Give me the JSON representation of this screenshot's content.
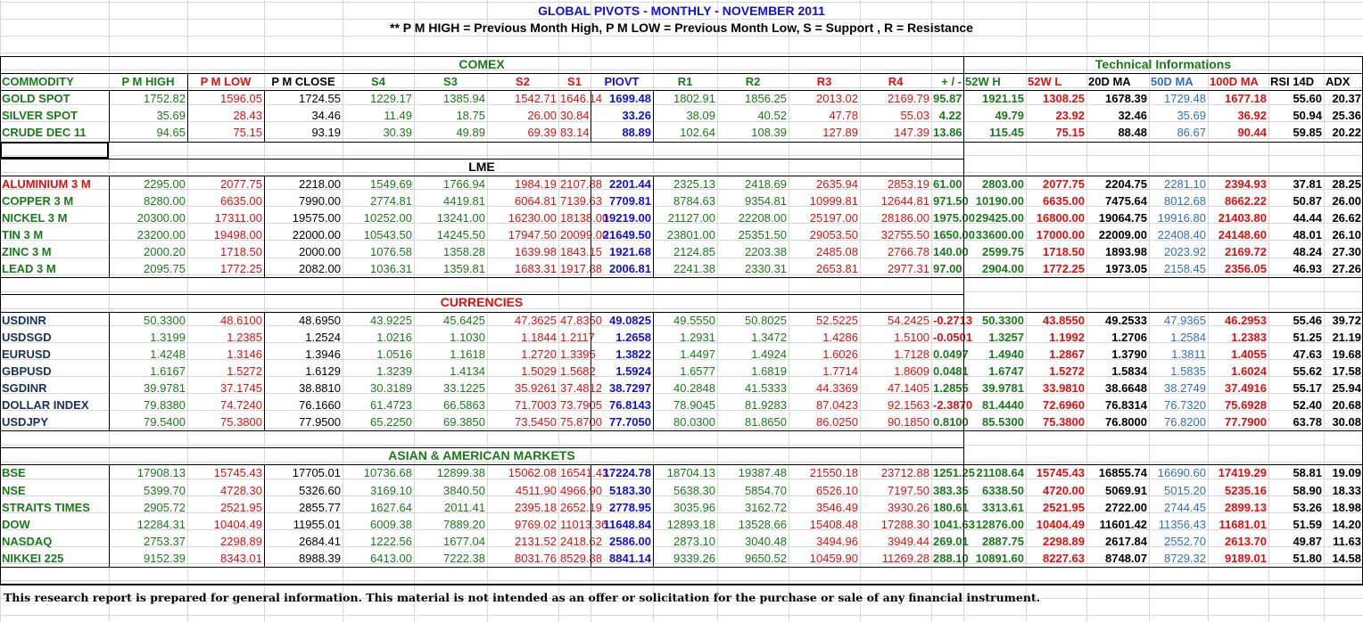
{
  "header": {
    "title": "GLOBAL PIVOTS - MONTHLY - NOVEMBER 2011",
    "subtitle": "** P M HIGH = Previous Month High, P M LOW = Previous Month Low, S  = Support  , R = Resistance"
  },
  "colors": {
    "green": "#1a7a1a",
    "red": "#e01010",
    "blue": "#1010dd",
    "lightblue": "#2f6fbf",
    "black": "#000000",
    "gridline": "#d8d8d8"
  },
  "groups": {
    "comex": "COMEX",
    "technical": "Technical Informations"
  },
  "columns": [
    "COMMODITY",
    "P M HIGH",
    "P M LOW",
    "P M CLOSE",
    "S4",
    "S3",
    "S2",
    "S1",
    "PIOVT",
    "R1",
    "R2",
    "R3",
    "R4",
    "+ / -",
    "52W H",
    "52W L",
    "20D MA",
    "50D MA",
    "100D MA",
    "RSI 14D",
    "ADX"
  ],
  "sections": [
    {
      "title": "",
      "rows": [
        [
          "GOLD SPOT",
          "1752.82",
          "1596.05",
          "1724.55",
          "1229.17",
          "1385.94",
          "1542.71",
          "1646.14",
          "1699.48",
          "1802.91",
          "1856.25",
          "2013.02",
          "2169.79",
          "95.87",
          "1921.15",
          "1308.25",
          "1678.39",
          "1729.48",
          "1677.18",
          "55.60",
          "20.37"
        ],
        [
          "SILVER SPOT",
          "35.69",
          "28.43",
          "34.46",
          "11.49",
          "18.75",
          "26.00",
          "30.84",
          "33.26",
          "38.09",
          "40.52",
          "47.78",
          "55.03",
          "4.22",
          "49.79",
          "23.92",
          "32.46",
          "35.69",
          "36.92",
          "50.94",
          "25.36"
        ],
        [
          "CRUDE DEC 11",
          "94.65",
          "75.15",
          "93.19",
          "30.39",
          "49.89",
          "69.39",
          "83.14",
          "88.89",
          "102.64",
          "108.39",
          "127.89",
          "147.39",
          "13.86",
          "115.45",
          "75.15",
          "88.48",
          "86.67",
          "90.44",
          "59.85",
          "20.22"
        ]
      ]
    },
    {
      "title": "LME",
      "rows": [
        [
          "ALUMINIUM 3 M",
          "2295.00",
          "2077.75",
          "2218.00",
          "1549.69",
          "1766.94",
          "1984.19",
          "2107.88",
          "2201.44",
          "2325.13",
          "2418.69",
          "2635.94",
          "2853.19",
          "61.00",
          "2803.00",
          "2077.75",
          "2204.75",
          "2281.10",
          "2394.93",
          "37.81",
          "28.25"
        ],
        [
          "COPPER 3 M",
          "8280.00",
          "6635.00",
          "7990.00",
          "2774.81",
          "4419.81",
          "6064.81",
          "7139.63",
          "7709.81",
          "8784.63",
          "9354.81",
          "10999.81",
          "12644.81",
          "971.50",
          "10190.00",
          "6635.00",
          "7475.64",
          "8012.68",
          "8662.22",
          "50.87",
          "26.00"
        ],
        [
          "NICKEL 3 M",
          "20300.00",
          "17311.00",
          "19575.00",
          "10252.00",
          "13241.00",
          "16230.00",
          "18138.00",
          "19219.00",
          "21127.00",
          "22208.00",
          "25197.00",
          "28186.00",
          "1975.00",
          "29425.00",
          "16800.00",
          "19064.75",
          "19916.80",
          "21403.80",
          "44.44",
          "26.62"
        ],
        [
          "TIN 3 M",
          "23200.00",
          "19498.00",
          "22000.00",
          "10543.50",
          "14245.50",
          "17947.50",
          "20099.00",
          "21649.50",
          "23801.00",
          "25351.50",
          "29053.50",
          "32755.50",
          "1650.00",
          "33600.00",
          "17000.00",
          "22009.00",
          "22408.40",
          "24148.60",
          "48.01",
          "26.10"
        ],
        [
          "ZINC 3 M",
          "2000.20",
          "1718.50",
          "2000.00",
          "1076.58",
          "1358.28",
          "1639.98",
          "1843.15",
          "1921.68",
          "2124.85",
          "2203.38",
          "2485.08",
          "2766.78",
          "140.00",
          "2599.75",
          "1718.50",
          "1893.98",
          "2023.92",
          "2169.72",
          "48.24",
          "27.30"
        ],
        [
          "LEAD 3 M",
          "2095.75",
          "1772.25",
          "2082.00",
          "1036.31",
          "1359.81",
          "1683.31",
          "1917.88",
          "2006.81",
          "2241.38",
          "2330.31",
          "2653.81",
          "2977.31",
          "97.00",
          "2904.00",
          "1772.25",
          "1973.05",
          "2158.45",
          "2356.05",
          "46.93",
          "27.26"
        ]
      ]
    },
    {
      "title": "CURRENCIES",
      "rows": [
        [
          "USDINR",
          "50.3300",
          "48.6100",
          "48.6950",
          "43.9225",
          "45.6425",
          "47.3625",
          "47.8350",
          "49.0825",
          "49.5550",
          "50.8025",
          "52.5225",
          "54.2425",
          "-0.2713",
          "50.3300",
          "43.8550",
          "49.2533",
          "47.9365",
          "46.2953",
          "55.46",
          "39.72"
        ],
        [
          "USDSGD",
          "1.3199",
          "1.2385",
          "1.2524",
          "1.0216",
          "1.1030",
          "1.1844",
          "1.2117",
          "1.2658",
          "1.2931",
          "1.3472",
          "1.4286",
          "1.5100",
          "-0.0501",
          "1.3257",
          "1.1992",
          "1.2706",
          "1.2584",
          "1.2383",
          "51.25",
          "21.19"
        ],
        [
          "EURUSD",
          "1.4248",
          "1.3146",
          "1.3946",
          "1.0516",
          "1.1618",
          "1.2720",
          "1.3395",
          "1.3822",
          "1.4497",
          "1.4924",
          "1.6026",
          "1.7128",
          "0.0497",
          "1.4940",
          "1.2867",
          "1.3790",
          "1.3811",
          "1.4055",
          "47.63",
          "19.68"
        ],
        [
          "GBPUSD",
          "1.6167",
          "1.5272",
          "1.6129",
          "1.3239",
          "1.4134",
          "1.5029",
          "1.5682",
          "1.5924",
          "1.6577",
          "1.6819",
          "1.7714",
          "1.8609",
          "0.0481",
          "1.6747",
          "1.5272",
          "1.5834",
          "1.5835",
          "1.6024",
          "55.62",
          "17.58"
        ],
        [
          "SGDINR",
          "39.9781",
          "37.1745",
          "38.8810",
          "30.3189",
          "33.1225",
          "35.9261",
          "37.4812",
          "38.7297",
          "40.2848",
          "41.5333",
          "44.3369",
          "47.1405",
          "1.2855",
          "39.9781",
          "33.9810",
          "38.6648",
          "38.2749",
          "37.4916",
          "55.17",
          "25.94"
        ],
        [
          "DOLLAR INDEX",
          "79.8380",
          "74.7240",
          "76.1660",
          "61.4723",
          "66.5863",
          "71.7003",
          "73.7905",
          "76.8143",
          "78.9045",
          "81.9283",
          "87.0423",
          "92.1563",
          "-2.3870",
          "81.4440",
          "72.6960",
          "76.8314",
          "76.7320",
          "75.6928",
          "52.40",
          "20.68"
        ],
        [
          "USDJPY",
          "79.5400",
          "75.3800",
          "77.9500",
          "65.2250",
          "69.3850",
          "73.5450",
          "75.8700",
          "77.7050",
          "80.0300",
          "81.8650",
          "86.0250",
          "90.1850",
          "0.8100",
          "85.5300",
          "75.3800",
          "76.8000",
          "76.8200",
          "77.7900",
          "63.78",
          "30.08"
        ]
      ]
    },
    {
      "title": "ASIAN & AMERICAN MARKETS",
      "rows": [
        [
          "BSE",
          "17908.13",
          "15745.43",
          "17705.01",
          "10736.68",
          "12899.38",
          "15062.08",
          "16541.43",
          "17224.78",
          "18704.13",
          "19387.48",
          "21550.18",
          "23712.88",
          "1251.25",
          "21108.64",
          "15745.43",
          "16855.74",
          "16690.60",
          "17419.29",
          "58.81",
          "19.09"
        ],
        [
          "NSE",
          "5399.70",
          "4728.30",
          "5326.60",
          "3169.10",
          "3840.50",
          "4511.90",
          "4966.90",
          "5183.30",
          "5638.30",
          "5854.70",
          "6526.10",
          "7197.50",
          "383.35",
          "6338.50",
          "4720.00",
          "5069.91",
          "5015.20",
          "5235.16",
          "58.90",
          "18.33"
        ],
        [
          "STRAITS TIMES",
          "2905.72",
          "2521.95",
          "2855.77",
          "1627.64",
          "2011.41",
          "2395.18",
          "2652.19",
          "2778.95",
          "3035.96",
          "3162.72",
          "3546.49",
          "3930.26",
          "180.61",
          "3313.61",
          "2521.95",
          "2722.00",
          "2744.45",
          "2899.13",
          "53.26",
          "18.98"
        ],
        [
          "DOW",
          "12284.31",
          "10404.49",
          "11955.01",
          "6009.38",
          "7889.20",
          "9769.02",
          "11013.36",
          "11648.84",
          "12893.18",
          "13528.66",
          "15408.48",
          "17288.30",
          "1041.63",
          "12876.00",
          "10404.49",
          "11601.42",
          "11356.43",
          "11681.01",
          "51.59",
          "14.20"
        ],
        [
          "NASDAQ",
          "2753.37",
          "2298.89",
          "2684.41",
          "1222.56",
          "1677.04",
          "2131.52",
          "2418.62",
          "2586.00",
          "2873.10",
          "3040.48",
          "3494.96",
          "3949.44",
          "269.01",
          "2887.75",
          "2298.89",
          "2617.84",
          "2552.70",
          "2613.70",
          "49.87",
          "11.63"
        ],
        [
          "NIKKEI 225",
          "9152.39",
          "8343.01",
          "8988.39",
          "6413.00",
          "7222.38",
          "8031.76",
          "8529.88",
          "8841.14",
          "9339.26",
          "9650.52",
          "10459.90",
          "11269.28",
          "288.10",
          "10891.60",
          "8227.63",
          "8748.07",
          "8729.32",
          "9189.01",
          "51.80",
          "14.58"
        ]
      ]
    }
  ],
  "footer": "This research report is prepared for general information. This material is not intended as an offer or solicitation for the purchase or sale of any financial instrument."
}
